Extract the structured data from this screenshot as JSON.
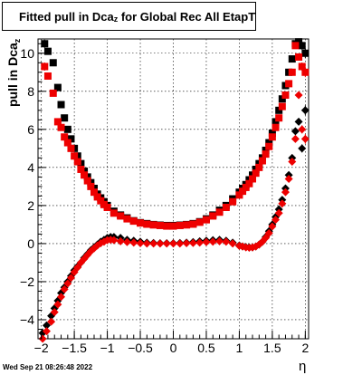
{
  "title": {
    "main": "Fitted pull in Dca",
    "sub": "z",
    "rest": " for Global Rec All EtapT"
  },
  "ylabel": {
    "main": "pull in Dca",
    "sub": "z"
  },
  "xlabel": "η",
  "timestamp": "Wed Sep 21 08:26:48 2022",
  "chart_data": {
    "type": "scatter",
    "title": "Fitted pull in Dcaz for Global Rec All EtapT",
    "xlabel": "η",
    "ylabel": "pull in Dcaz",
    "xlim": [
      -2.05,
      2.05
    ],
    "ylim": [
      -5.0,
      10.75
    ],
    "grid": true,
    "xticks": [
      -2,
      -1.5,
      -1,
      -0.5,
      0,
      0.5,
      1,
      1.5,
      2
    ],
    "xtick_labels": [
      "−2",
      "−1.5",
      "−1",
      "−0.5",
      "0",
      "0.5",
      "1",
      "1.5",
      "2"
    ],
    "yticks": [
      -4,
      -2,
      0,
      2,
      4,
      6,
      8,
      10
    ],
    "ytick_labels": [
      "−4",
      "−2",
      "0",
      "2",
      "4",
      "6",
      "8",
      "10"
    ],
    "series": [
      {
        "marker": "square",
        "color": "#000000",
        "x": [
          -1.95,
          -1.9,
          -1.82,
          -1.75,
          -1.7,
          -1.65,
          -1.6,
          -1.55,
          -1.5,
          -1.45,
          -1.4,
          -1.35,
          -1.3,
          -1.25,
          -1.2,
          -1.15,
          -1.1,
          -1.05,
          -1.0,
          -0.9,
          -0.8,
          -0.7,
          -0.6,
          -0.5,
          -0.4,
          -0.3,
          -0.2,
          -0.1,
          0.0,
          0.1,
          0.2,
          0.3,
          0.4,
          0.5,
          0.6,
          0.7,
          0.8,
          0.9,
          1.0,
          1.05,
          1.1,
          1.15,
          1.2,
          1.25,
          1.3,
          1.35,
          1.4,
          1.45,
          1.5,
          1.55,
          1.6,
          1.65,
          1.7,
          1.75,
          1.8,
          1.85,
          1.9,
          1.95,
          2.0
        ],
        "y": [
          10.5,
          10.1,
          9.5,
          8.2,
          7.3,
          6.6,
          6.0,
          5.5,
          5.0,
          4.6,
          4.2,
          3.8,
          3.5,
          3.2,
          2.9,
          2.6,
          2.4,
          2.2,
          2.0,
          1.7,
          1.5,
          1.35,
          1.2,
          1.1,
          1.05,
          1.0,
          0.97,
          0.95,
          0.95,
          0.97,
          1.0,
          1.05,
          1.15,
          1.3,
          1.5,
          1.75,
          2.0,
          2.35,
          2.7,
          2.9,
          3.1,
          3.35,
          3.6,
          3.9,
          4.2,
          4.5,
          4.9,
          5.3,
          5.8,
          6.4,
          7.0,
          7.6,
          8.3,
          9.0,
          9.7,
          10.5,
          10.6,
          10.4,
          10.0
        ]
      },
      {
        "marker": "square",
        "color": "#ee0000",
        "x": [
          -1.95,
          -1.9,
          -1.82,
          -1.75,
          -1.7,
          -1.65,
          -1.6,
          -1.55,
          -1.5,
          -1.45,
          -1.4,
          -1.35,
          -1.3,
          -1.25,
          -1.2,
          -1.15,
          -1.1,
          -1.05,
          -1.0,
          -0.9,
          -0.8,
          -0.7,
          -0.6,
          -0.5,
          -0.4,
          -0.3,
          -0.2,
          -0.1,
          0.0,
          0.1,
          0.2,
          0.3,
          0.4,
          0.5,
          0.6,
          0.7,
          0.8,
          0.9,
          1.0,
          1.05,
          1.1,
          1.15,
          1.2,
          1.25,
          1.3,
          1.35,
          1.4,
          1.45,
          1.5,
          1.55,
          1.6,
          1.65,
          1.7,
          1.75,
          1.8,
          1.85,
          1.9,
          1.95,
          2.0
        ],
        "y": [
          9.3,
          8.8,
          7.9,
          6.4,
          6.1,
          5.6,
          5.3,
          5.0,
          4.6,
          4.3,
          3.9,
          3.6,
          3.3,
          3.0,
          2.7,
          2.45,
          2.25,
          2.05,
          1.9,
          1.6,
          1.45,
          1.3,
          1.18,
          1.08,
          1.02,
          0.98,
          0.95,
          0.92,
          0.92,
          0.95,
          0.98,
          1.02,
          1.12,
          1.25,
          1.45,
          1.65,
          1.9,
          2.2,
          2.55,
          2.75,
          2.95,
          3.15,
          3.4,
          3.7,
          4.0,
          4.35,
          4.7,
          5.1,
          5.6,
          6.1,
          6.6,
          7.2,
          7.8,
          8.4,
          9.0,
          10.4,
          9.8,
          9.3,
          9.0
        ]
      },
      {
        "marker": "diamond",
        "color": "#000000",
        "x": [
          -1.98,
          -1.92,
          -1.85,
          -1.8,
          -1.75,
          -1.7,
          -1.65,
          -1.6,
          -1.55,
          -1.5,
          -1.45,
          -1.4,
          -1.35,
          -1.3,
          -1.25,
          -1.2,
          -1.15,
          -1.1,
          -1.05,
          -1.0,
          -0.95,
          -0.9,
          -0.8,
          -0.7,
          -0.6,
          -0.5,
          -0.4,
          -0.3,
          -0.2,
          -0.1,
          0.0,
          0.1,
          0.2,
          0.3,
          0.4,
          0.5,
          0.6,
          0.7,
          0.8,
          0.9,
          1.0,
          1.05,
          1.1,
          1.15,
          1.2,
          1.25,
          1.3,
          1.35,
          1.4,
          1.45,
          1.5,
          1.55,
          1.6,
          1.65,
          1.7,
          1.75,
          1.8,
          1.85,
          1.9,
          1.95,
          2.0
        ],
        "y": [
          -4.7,
          -4.3,
          -3.8,
          -3.4,
          -3.0,
          -2.6,
          -2.3,
          -2.0,
          -1.7,
          -1.4,
          -1.2,
          -1.0,
          -0.75,
          -0.55,
          -0.35,
          -0.2,
          -0.05,
          0.1,
          0.2,
          0.3,
          0.35,
          0.35,
          0.3,
          0.2,
          0.15,
          0.1,
          0.05,
          0.03,
          0.02,
          0.02,
          0.02,
          0.03,
          0.05,
          0.08,
          0.12,
          0.15,
          0.18,
          0.2,
          0.15,
          0.05,
          -0.1,
          -0.15,
          -0.18,
          -0.2,
          -0.2,
          -0.15,
          -0.05,
          0.1,
          0.35,
          0.65,
          1.0,
          1.4,
          1.8,
          2.3,
          2.9,
          3.6,
          4.5,
          5.9,
          6.4,
          5.0,
          7.0
        ]
      },
      {
        "marker": "diamond",
        "color": "#ee0000",
        "x": [
          -1.98,
          -1.92,
          -1.85,
          -1.8,
          -1.75,
          -1.7,
          -1.65,
          -1.6,
          -1.55,
          -1.5,
          -1.45,
          -1.4,
          -1.35,
          -1.3,
          -1.25,
          -1.2,
          -1.15,
          -1.1,
          -1.05,
          -1.0,
          -0.95,
          -0.9,
          -0.8,
          -0.7,
          -0.6,
          -0.5,
          -0.4,
          -0.3,
          -0.2,
          -0.1,
          0.0,
          0.1,
          0.2,
          0.3,
          0.4,
          0.5,
          0.6,
          0.7,
          0.8,
          0.9,
          1.0,
          1.05,
          1.1,
          1.15,
          1.2,
          1.25,
          1.3,
          1.35,
          1.4,
          1.45,
          1.5,
          1.55,
          1.6,
          1.65,
          1.7,
          1.75,
          1.8,
          1.85,
          1.9,
          1.95,
          2.0
        ],
        "y": [
          -5.0,
          -4.6,
          -4.1,
          -3.6,
          -3.2,
          -2.8,
          -2.4,
          -2.1,
          -1.8,
          -1.5,
          -1.25,
          -1.0,
          -0.8,
          -0.6,
          -0.4,
          -0.25,
          -0.1,
          0.02,
          0.1,
          0.18,
          0.2,
          0.18,
          0.12,
          0.08,
          0.05,
          0.02,
          0.0,
          0.0,
          0.0,
          0.0,
          0.0,
          0.0,
          0.02,
          0.03,
          0.05,
          0.08,
          0.1,
          0.12,
          0.1,
          0.0,
          -0.12,
          -0.15,
          -0.2,
          -0.22,
          -0.2,
          -0.15,
          -0.05,
          0.1,
          0.3,
          0.55,
          0.9,
          1.25,
          1.6,
          2.1,
          2.7,
          3.4,
          4.3,
          5.5,
          7.8,
          6.0,
          5.5
        ]
      }
    ]
  }
}
